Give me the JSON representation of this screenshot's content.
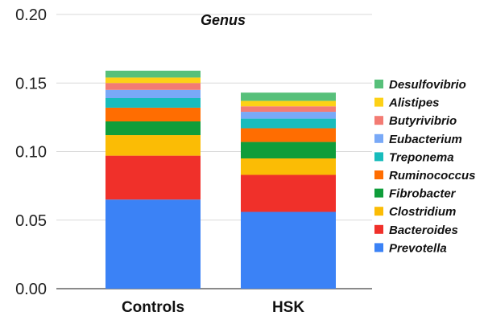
{
  "chart_data": {
    "type": "bar",
    "stacked": true,
    "title": "Genus",
    "xlabel": "",
    "ylabel": "",
    "ylim": [
      0,
      0.2
    ],
    "yticks": [
      "0.00",
      "0.05",
      "0.10",
      "0.15",
      "0.20"
    ],
    "grid": true,
    "legend_position": "right",
    "categories": [
      "Controls",
      "HSK"
    ],
    "series": [
      {
        "name": "Prevotella",
        "color": "#3b82f6",
        "values": [
          0.065,
          0.056
        ]
      },
      {
        "name": "Bacteroides",
        "color": "#f0302a",
        "values": [
          0.032,
          0.027
        ]
      },
      {
        "name": "Clostridium",
        "color": "#fbbc05",
        "values": [
          0.015,
          0.012
        ]
      },
      {
        "name": "Fibrobacter",
        "color": "#0f9d3a",
        "values": [
          0.01,
          0.012
        ]
      },
      {
        "name": "Ruminococcus",
        "color": "#ff6d01",
        "values": [
          0.01,
          0.01
        ]
      },
      {
        "name": "Treponema",
        "color": "#18bcbc",
        "values": [
          0.007,
          0.007
        ]
      },
      {
        "name": "Eubacterium",
        "color": "#79a9f7",
        "values": [
          0.006,
          0.005
        ]
      },
      {
        "name": "Butyrivibrio",
        "color": "#f37b73",
        "values": [
          0.005,
          0.004
        ]
      },
      {
        "name": "Alistipes",
        "color": "#fdd116",
        "values": [
          0.004,
          0.004
        ]
      },
      {
        "name": "Desulfovibrio",
        "color": "#57c07a",
        "values": [
          0.005,
          0.006
        ]
      }
    ]
  }
}
